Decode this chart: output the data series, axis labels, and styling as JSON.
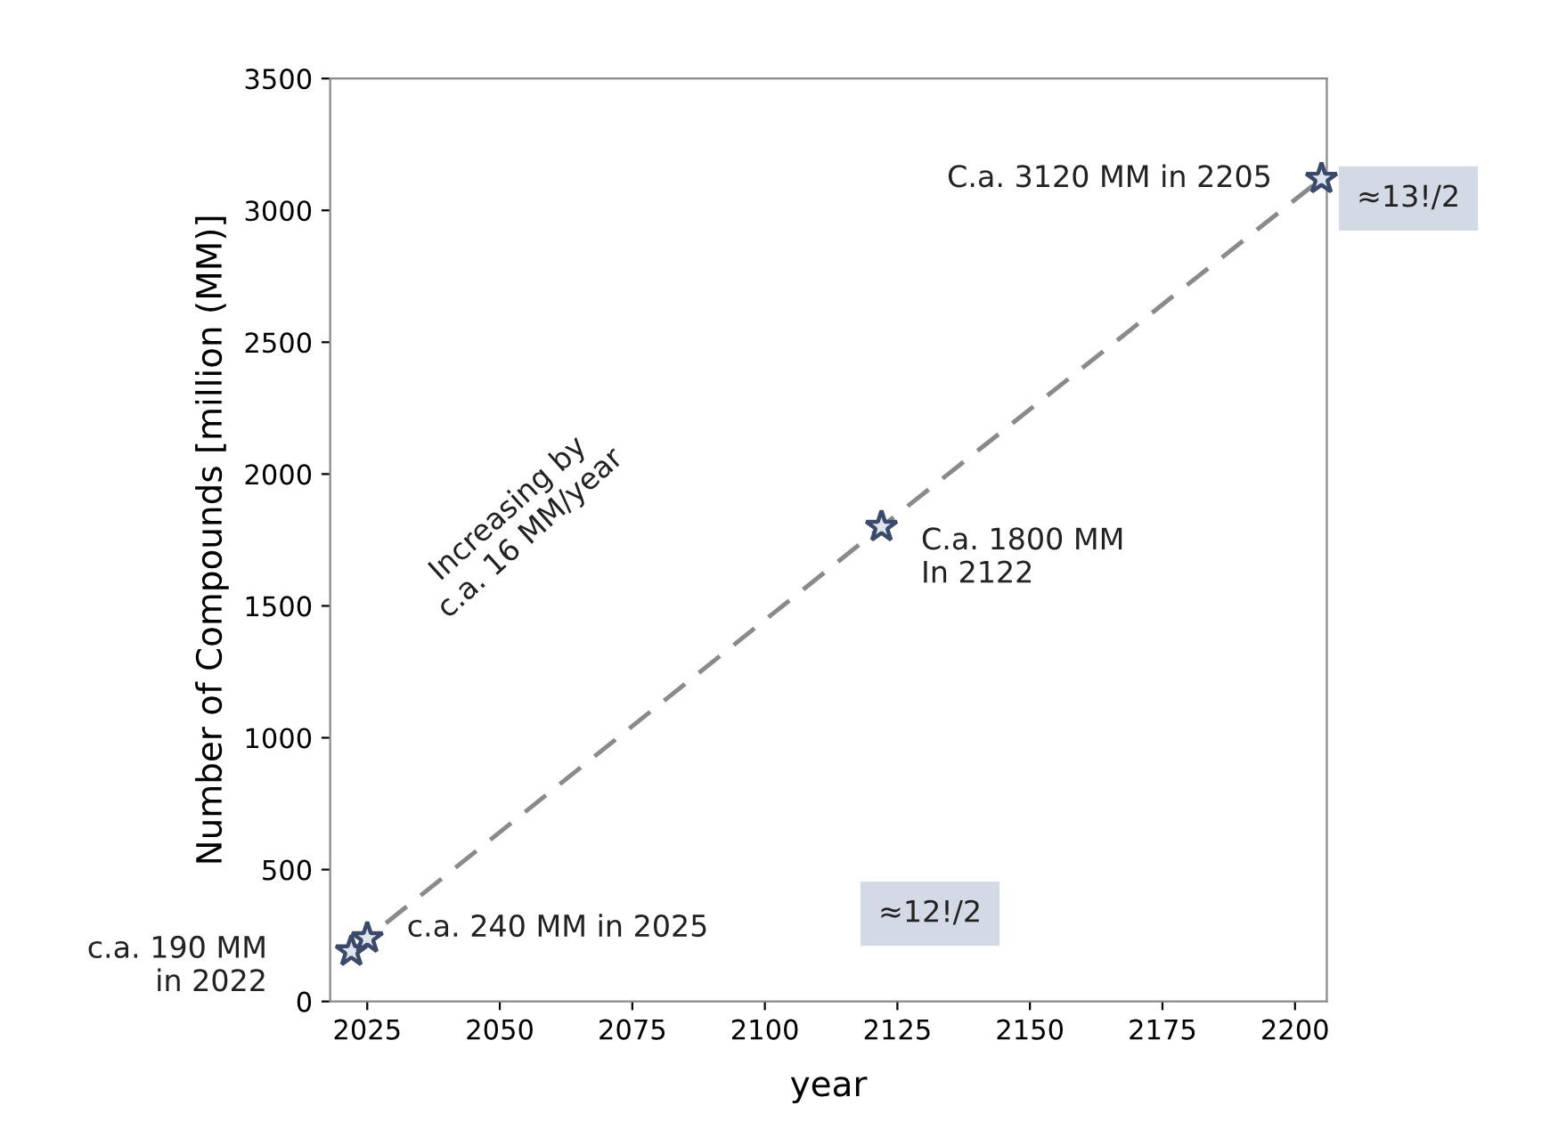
{
  "chart_data": {
    "type": "line",
    "xlabel": "year",
    "ylabel": "Number of Compounds [million (MM)]",
    "x": [
      2022,
      2025,
      2122,
      2205
    ],
    "series": [
      {
        "color": "#8a8a8a",
        "values": [
          190,
          240,
          1800,
          3120
        ]
      }
    ],
    "marker": "star",
    "line_style": "dashed",
    "grid": false,
    "legend": false,
    "xlim": [
      2018,
      2206
    ],
    "ylim": [
      0,
      3500
    ],
    "xticks": [
      2025,
      2050,
      2075,
      2100,
      2125,
      2150,
      2175,
      2200
    ],
    "yticks": [
      0,
      500,
      1000,
      1500,
      2000,
      2500,
      3000,
      3500
    ],
    "annotations": [
      {
        "text": "c.a. 190 MM\nin 2022",
        "x": 2022,
        "y": 190
      },
      {
        "text": "c.a. 240 MM in 2025",
        "x": 2025,
        "y": 240
      },
      "≈12!/2",
      {
        "text": "C.a. 1800 MM\nIn 2122",
        "x": 2122,
        "y": 1800
      },
      {
        "text": "C.a. 3120 MM in 2205",
        "x": 2205,
        "y": 3120
      },
      "≈13!/2",
      "Increasing by\nc.a. 16 MM/year"
    ]
  }
}
